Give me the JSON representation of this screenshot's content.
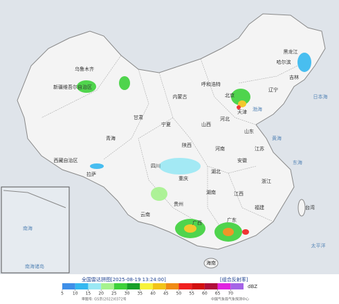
{
  "header": {
    "title": "全国雷达拼图",
    "time": "[2025-08-19 13:24:00]",
    "product": "[组合反射率]"
  },
  "legend": {
    "unit": "dBZ",
    "ticks": [
      5,
      10,
      15,
      20,
      25,
      30,
      35,
      40,
      45,
      50,
      55,
      60,
      65,
      70
    ],
    "colors": [
      "#3f8fe8",
      "#35b8f0",
      "#9be8f4",
      "#a6f28e",
      "#3ed13b",
      "#17a02a",
      "#f7f23a",
      "#f2c418",
      "#f08b14",
      "#f02020",
      "#d10f0f",
      "#b00e3a",
      "#e024e0",
      "#a464e6"
    ]
  },
  "footer": {
    "approval": "审图号: GS京(2022)0372号",
    "source": "中国气象局气象探测中心"
  },
  "places": [
    "新疆维吾尔自治区",
    "乌鲁木齐",
    "西藏自治区",
    "拉萨",
    "青海",
    "甘肃",
    "内蒙古",
    "呼和浩特",
    "黑龙江",
    "哈尔滨",
    "吉林",
    "辽宁",
    "北京",
    "天津",
    "河北",
    "山西",
    "山东",
    "河南",
    "陕西",
    "宁夏",
    "四川",
    "重庆",
    "湖北",
    "湖南",
    "安徽",
    "江苏",
    "浙江",
    "江西",
    "福建",
    "贵州",
    "云南",
    "广西",
    "广东",
    "海南",
    "台湾",
    "渤海",
    "黄海",
    "东海",
    "日本海",
    "太平洋",
    "南海诸岛",
    "南海"
  ]
}
